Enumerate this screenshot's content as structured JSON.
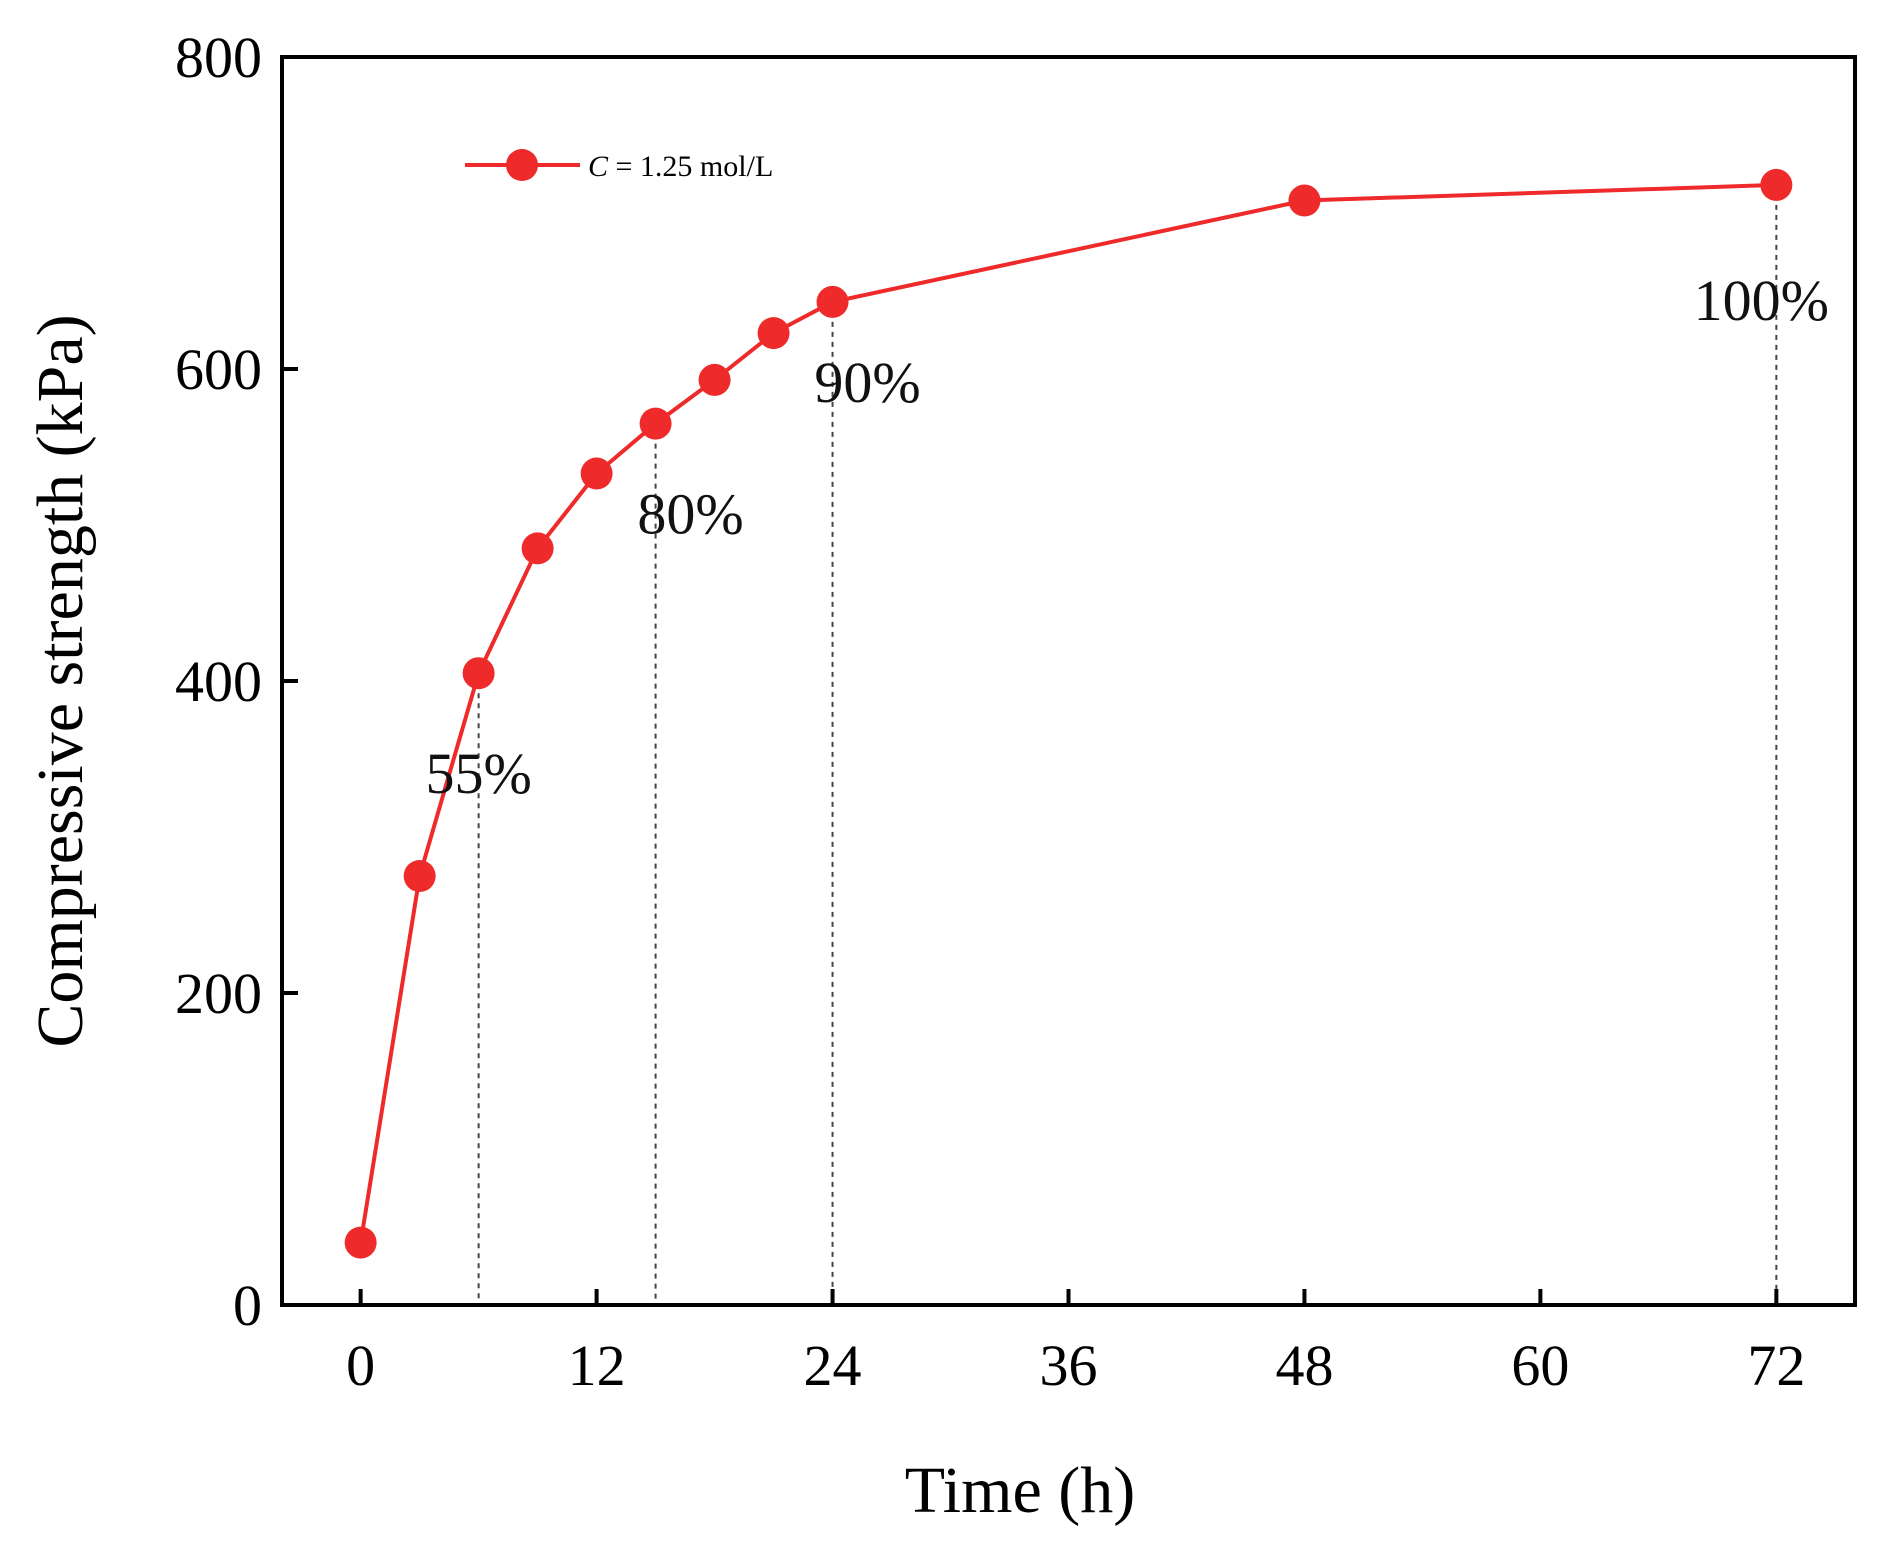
{
  "chart_data": {
    "type": "line",
    "title": "",
    "xlabel": "Time (h)",
    "ylabel": "Compressive strength  (kPa)",
    "xlim": [
      -4,
      76
    ],
    "ylim": [
      0,
      800
    ],
    "xticks": [
      0,
      12,
      24,
      36,
      48,
      60,
      72
    ],
    "yticks": [
      0,
      200,
      400,
      600,
      800
    ],
    "grid": false,
    "legend_position": "top-left",
    "series": [
      {
        "name": "C = 1.25 mol/L",
        "legend_italic": "C",
        "legend_rest": " = 1.25 mol/L",
        "color": "#ee2a2a",
        "x": [
          0,
          3,
          6,
          9,
          12,
          15,
          18,
          21,
          24,
          48,
          72
        ],
        "y": [
          40,
          275,
          405,
          485,
          533,
          565,
          593,
          623,
          643,
          708,
          718
        ]
      }
    ],
    "annotations": [
      {
        "text": "55%",
        "x": 6
      },
      {
        "text": "80%",
        "x": 15
      },
      {
        "text": "90%",
        "x": 24
      },
      {
        "text": "100%",
        "x": 72
      }
    ]
  }
}
